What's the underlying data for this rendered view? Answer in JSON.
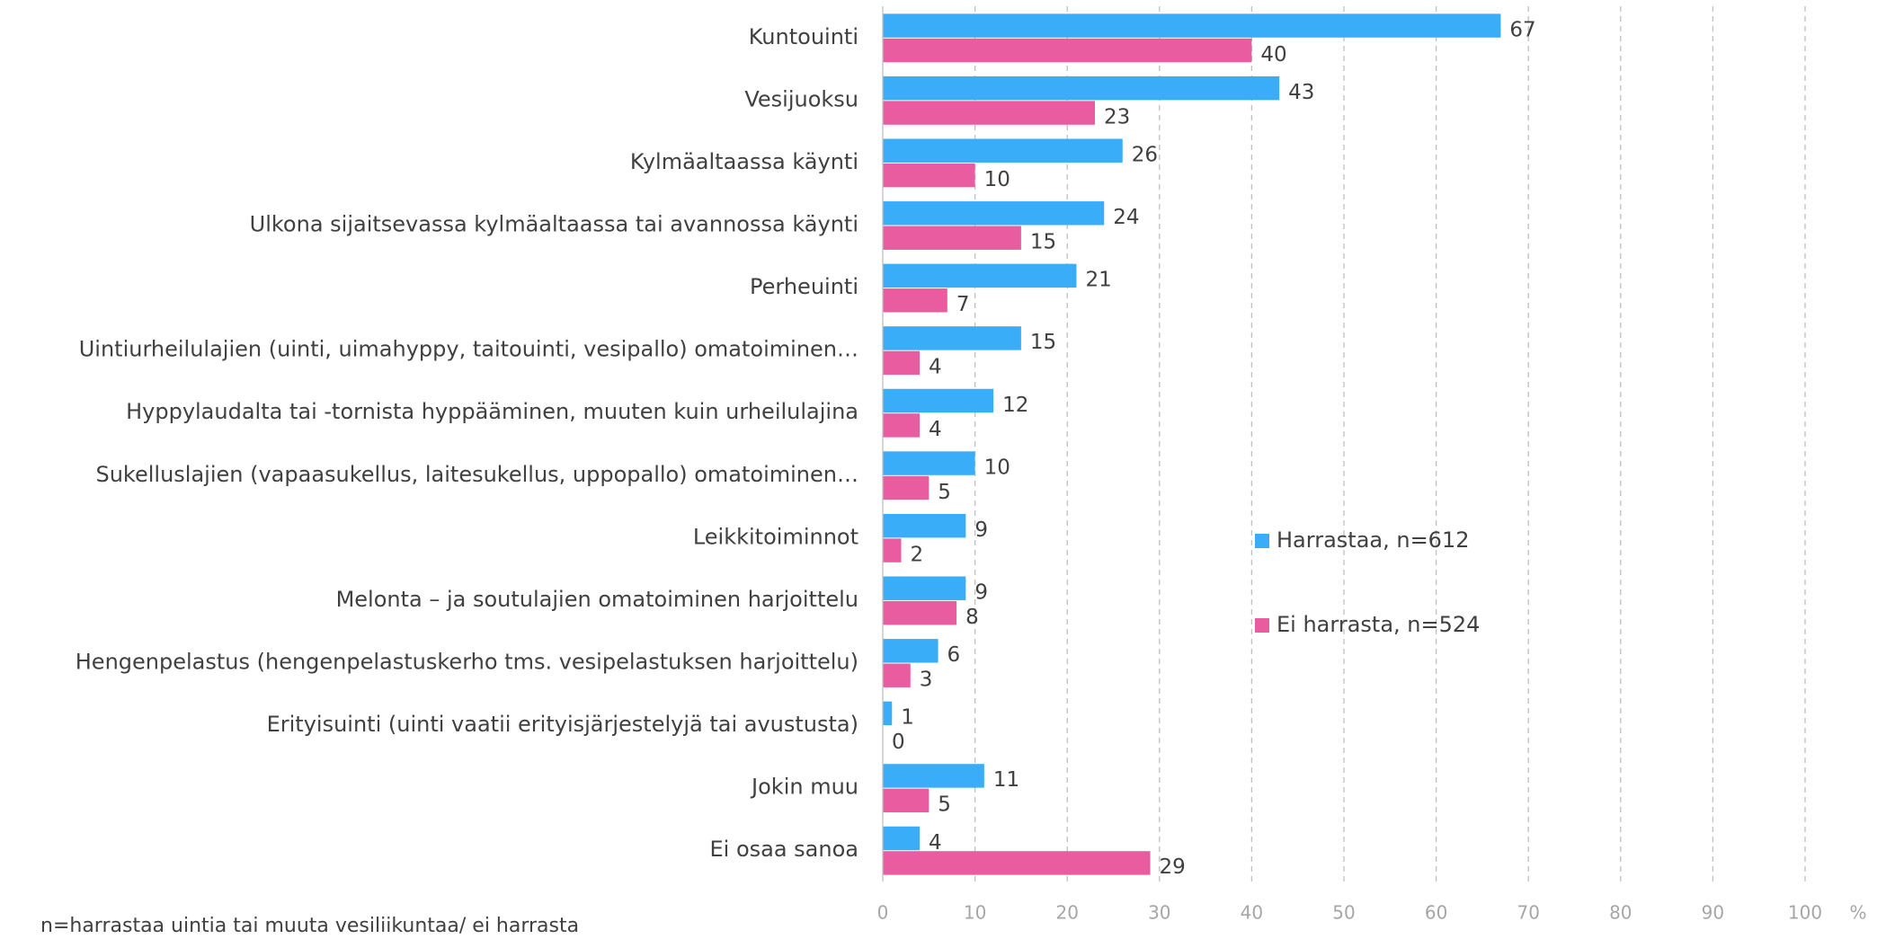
{
  "chart_data": {
    "type": "hbar",
    "categories": [
      "Kuntouinti",
      "Vesijuoksu",
      "Kylmäaltaassa käynti",
      "Ulkona sijaitsevassa kylmäaltaassa tai avannossa käynti",
      "Perheuinti",
      "Uintiurheilulajien (uinti, uimahyppy, taitouinti, vesipallo) omatoiminen…",
      "Hyppylaudalta tai -tornista hyppääminen, muuten kuin urheilulajina",
      "Sukelluslajien (vapaasukellus, laitesukellus, uppopallo) omatoiminen…",
      "Leikkitoiminnot",
      "Melonta – ja soutulajien omatoiminen harjoittelu",
      "Hengenpelastus (hengenpelastuskerho tms. vesipelastuksen harjoittelu)",
      "Erityisuinti (uinti vaatii erityisjärjestelyjä tai avustusta)",
      "Jokin muu",
      "Ei osaa sanoa"
    ],
    "series": [
      {
        "name": "Harrastaa, n=612",
        "color": "#3aadf8",
        "values": [
          67,
          43,
          26,
          24,
          21,
          15,
          12,
          10,
          9,
          9,
          6,
          1,
          11,
          4
        ]
      },
      {
        "name": "Ei harrasta, n=524",
        "color": "#e95ca0",
        "values": [
          40,
          23,
          10,
          15,
          7,
          4,
          4,
          5,
          2,
          8,
          3,
          0,
          5,
          29
        ]
      }
    ],
    "xlim": [
      0,
      100
    ],
    "xticks": [
      0,
      10,
      20,
      30,
      40,
      50,
      60,
      70,
      80,
      90,
      100
    ],
    "x_label": "%",
    "grid": true,
    "note": "n=harrastaa uintia tai muuta vesiliikuntaa/ ei harrasta"
  }
}
